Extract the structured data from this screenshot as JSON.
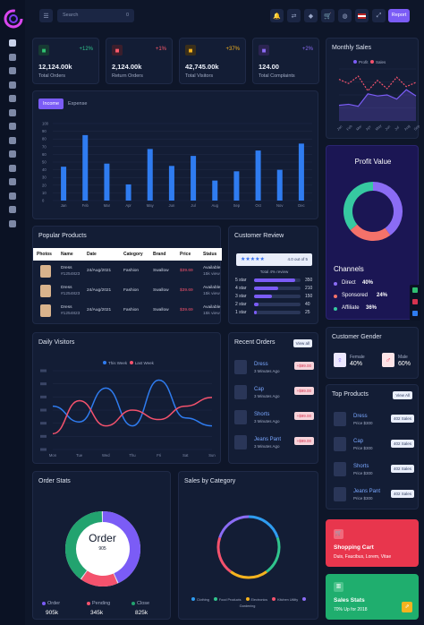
{
  "topbar": {
    "search_placeholder": "Search",
    "search_shortcut": "0",
    "report_label": "Report",
    "icons": [
      "bell-icon",
      "shuffle-icon",
      "puzzle-icon",
      "cart-icon",
      "globe-icon",
      "flag-icon",
      "expand-icon"
    ]
  },
  "stats": [
    {
      "value": "12,124.00k",
      "label": "Total Orders",
      "pct": "+12%",
      "pct_color": "#31c48d",
      "icon": "cart-icon",
      "icon_color": "#2fbf71",
      "icon_bg": "#173a33"
    },
    {
      "value": "2,124.00k",
      "label": "Return Orders",
      "pct": "+1%",
      "pct_color": "#ff5a6b",
      "icon": "return-icon",
      "icon_color": "#ff5a6b",
      "icon_bg": "#3b1e2c"
    },
    {
      "value": "42,745.00k",
      "label": "Total Visitors",
      "pct": "+37%",
      "pct_color": "#f5b31f",
      "icon": "users-icon",
      "icon_color": "#f5b31f",
      "icon_bg": "#3a2f1a"
    },
    {
      "value": "124.00",
      "label": "Total Complaints",
      "pct": "+2%",
      "pct_color": "#8b6cf5",
      "icon": "warning-icon",
      "icon_color": "#8b6cf5",
      "icon_bg": "#2b2451"
    }
  ],
  "monthly_sales": {
    "title": "Monthly Sales",
    "legend": [
      "Profit",
      "Sales"
    ],
    "y_ticks": [
      "",
      "",
      "",
      "",
      ""
    ],
    "chart_data": {
      "type": "line",
      "x": [
        "Jan",
        "Feb",
        "Mar",
        "Apr",
        "May",
        "Jun",
        "Jul",
        "Aug",
        "Sep"
      ],
      "series": [
        {
          "name": "Profit",
          "values": [
            30,
            32,
            28,
            52,
            48,
            50,
            42,
            60,
            48
          ]
        },
        {
          "name": "Sales",
          "values": [
            80,
            72,
            86,
            58,
            78,
            62,
            84,
            66,
            74
          ]
        }
      ]
    }
  },
  "income": {
    "tabs": [
      "Income",
      "Expense"
    ],
    "y_ticks": [
      "100",
      "90",
      "80",
      "70",
      "60",
      "50",
      "40",
      "30",
      "20",
      "10",
      "0"
    ],
    "chart_data": {
      "type": "bar",
      "categories": [
        "Jan",
        "Feb",
        "Mar",
        "Apr",
        "May",
        "Jun",
        "Jul",
        "Aug",
        "Sep",
        "Oct",
        "Nov",
        "Dec"
      ],
      "values": [
        44,
        85,
        48,
        21,
        67,
        45,
        58,
        26,
        38,
        65,
        40,
        74
      ],
      "ylim": [
        0,
        100
      ]
    }
  },
  "profit": {
    "title": "Profit Value",
    "chart_data": {
      "type": "pie",
      "labels": [
        "Direct",
        "Sponsored",
        "Affiliate"
      ],
      "values": [
        40,
        24,
        36
      ]
    },
    "channels_title": "Channels",
    "channels": [
      {
        "name": "Direct",
        "pct": "40%",
        "color": "#8b6cf5"
      },
      {
        "name": "Sponsored",
        "pct": "24%",
        "color": "#f4726a"
      },
      {
        "name": "Affiliate",
        "pct": "36%",
        "color": "#36c9a1"
      }
    ]
  },
  "popular": {
    "title": "Popular Products",
    "headers": [
      "Photos",
      "Name",
      "Date",
      "Category",
      "Brand",
      "Price",
      "Status"
    ],
    "rows": [
      {
        "name": "Dress",
        "id": "#1254823",
        "date": "24/Aug/2021",
        "category": "Fashion",
        "brand": "Swallow",
        "price": "$39.69",
        "status": "Available",
        "sub": "15k view"
      },
      {
        "name": "Dress",
        "id": "#1254823",
        "date": "24/Aug/2021",
        "category": "Fashion",
        "brand": "Swallow",
        "price": "$39.69",
        "status": "Available",
        "sub": "15k view"
      },
      {
        "name": "Dress",
        "id": "#1254823",
        "date": "24/Aug/2021",
        "category": "Fashion",
        "brand": "Swallow",
        "price": "$39.69",
        "status": "Available",
        "sub": "15k view"
      }
    ]
  },
  "review": {
    "title": "Customer Review",
    "stars": "★★★★★",
    "score": "4.0 out of 5",
    "total": "Total 4% review",
    "chart_data": {
      "type": "bar",
      "categories": [
        "5 star",
        "4 star",
        "3 star",
        "2 star",
        "1 star"
      ],
      "values": [
        350,
        210,
        150,
        40,
        25
      ]
    }
  },
  "visitors": {
    "title": "Daily Visitors",
    "legend": [
      "This Week",
      "Last Week"
    ],
    "y_ticks": [
      "",
      "",
      "",
      "",
      "",
      "",
      ""
    ],
    "chart_data": {
      "type": "line",
      "x": [
        "Mon",
        "Tue",
        "Wed",
        "Thu",
        "Fri",
        "Sat",
        "Sun"
      ],
      "series": [
        {
          "name": "This Week",
          "values": [
            55,
            35,
            78,
            30,
            88,
            40,
            30
          ]
        },
        {
          "name": "Last Week",
          "values": [
            20,
            62,
            30,
            50,
            38,
            55,
            66
          ]
        }
      ]
    }
  },
  "orders": {
    "title": "Recent Orders",
    "view_all": "View all",
    "items": [
      {
        "name": "Dress",
        "time": "3 Minutes Ago",
        "price": "+$99.00"
      },
      {
        "name": "Cap",
        "time": "3 Minutes Ago",
        "price": "+$99.00"
      },
      {
        "name": "Shorts",
        "time": "3 Minutes Ago",
        "price": "+$99.00"
      },
      {
        "name": "Jeans Pant",
        "time": "3 Minutes Ago",
        "price": "+$99.00"
      }
    ]
  },
  "gender": {
    "title": "Customer Gender",
    "female_label": "Female",
    "female_pct": "40%",
    "male_label": "Male",
    "male_pct": "60%"
  },
  "top": {
    "title": "Top Products",
    "view_all": "View All",
    "items": [
      {
        "name": "Dress",
        "price": "Price $300",
        "sales": "402 Sales"
      },
      {
        "name": "Cap",
        "price": "Price $300",
        "sales": "402 Sales"
      },
      {
        "name": "Shorts",
        "price": "Price $300",
        "sales": "402 Sales"
      },
      {
        "name": "Jeans Pant",
        "price": "Price $300",
        "sales": "402 Sales"
      }
    ]
  },
  "orderstats": {
    "title": "Order Stats",
    "center_title": "Order",
    "center_sub": "905",
    "chart_data": {
      "type": "pie",
      "labels": [
        "Order",
        "Pending",
        "Close"
      ],
      "values": [
        905,
        345,
        825
      ]
    },
    "legend": [
      {
        "name": "Order",
        "value": "905k",
        "color": "#7b5cf6"
      },
      {
        "name": "Pending",
        "value": "345k",
        "color": "#f4526d"
      },
      {
        "name": "Close",
        "value": "825k",
        "color": "#22a36f"
      }
    ]
  },
  "category": {
    "title": "Sales by Category",
    "chart_data": {
      "type": "pie",
      "labels": [
        "Clothing",
        "Food Products",
        "Electronics",
        "Kitchen Utility",
        "Gardening"
      ],
      "values": [
        20,
        20,
        20,
        20,
        20
      ]
    },
    "colors": [
      "#2f9cf0",
      "#30c48d",
      "#f5b31f",
      "#f4526d",
      "#8b6cf5"
    ]
  },
  "cart_card": {
    "title": "Shopping Cart",
    "sub": "Duis, Faucibus, Lorem, Vitae"
  },
  "stats_card": {
    "title": "Sales Stats",
    "sub": "70% Up for 2018"
  }
}
